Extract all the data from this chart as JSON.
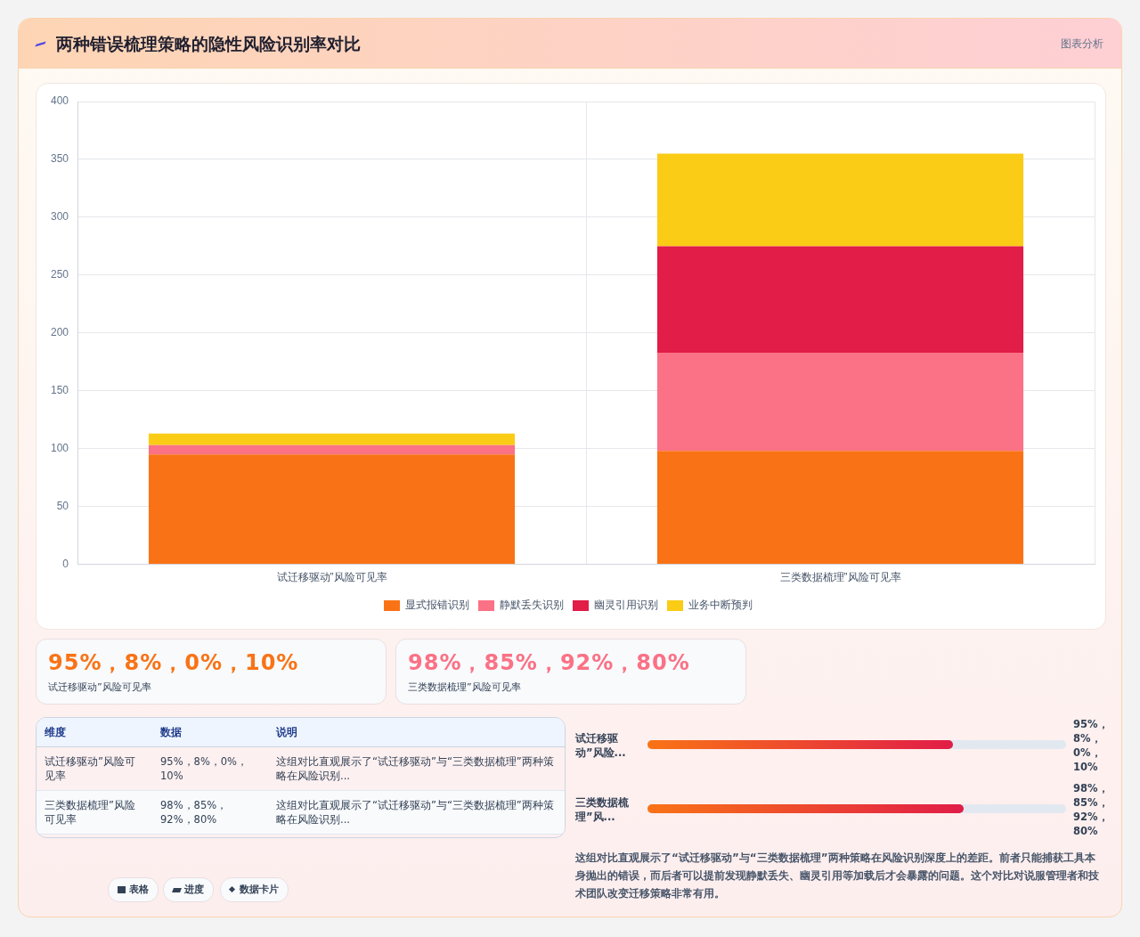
{
  "chart_data": {
    "type": "bar",
    "title": "两种错误梳理策略的隐性风险识别率对比",
    "categories": [
      "试迁移驱动”风险可见率",
      "三类数据梳理”风险可见率"
    ],
    "stacked": true,
    "series": [
      {
        "name": "显式报错识别",
        "color": "#f97316",
        "values": [
          95,
          98
        ]
      },
      {
        "name": "静默丢失识别",
        "color": "#fb7185",
        "values": [
          8,
          85
        ]
      },
      {
        "name": "幽灵引用识别",
        "color": "#e11d48",
        "values": [
          0,
          92
        ]
      },
      {
        "name": "业务中断预判",
        "color": "#facc15",
        "values": [
          10,
          80
        ]
      }
    ],
    "ylim": [
      0,
      400
    ],
    "yticks": [
      0,
      50,
      100,
      150,
      200,
      250,
      300,
      350,
      400
    ],
    "grid": true,
    "legend": "bottom",
    "annotations": [
      "图表分析",
      "95%，8%，0%，10%",
      "试迁移驱动”风险可见率",
      "98%，85%，92%，80%",
      "三类数据梳理”风险可见率",
      "维度",
      "数据",
      "说明",
      "试迁移驱动”风险可见率",
      "95%，8%，0%，10%",
      "这组对比直观展示了“试迁移驱动”与“三类数据梳理”两种策略在风险识别...",
      "三类数据梳理”风险可见率",
      "98%，85%，92%，80%",
      "这组对比直观展示了“试迁移驱动”与“三类数据梳理”两种策略在风险识别...",
      "这组对比直观展示了“试迁移驱动”与“三类数据梳理”两种策略在风险识别深度上的差距。前者只能捕获工具本身抛出的错误，而后者可以提前发现静默丢失、幽灵引用等加载后才会暴露的问题。这个对比对说服管理者和技术团队改变迁移策略非常有用。",
      "表格",
      "进度",
      "数据卡片",
      "试迁移驱动”风险...",
      "95%，8%，0%，10%",
      "三类数据梳理”风...",
      "98%，85%，92%，80%"
    ]
  }
}
